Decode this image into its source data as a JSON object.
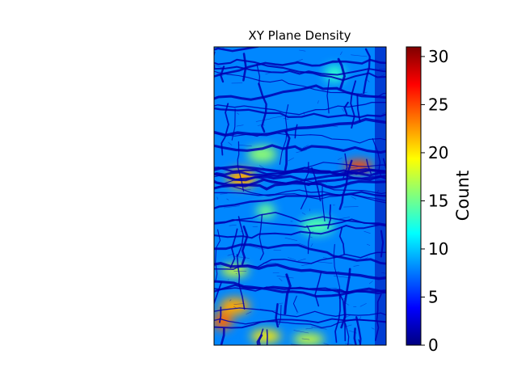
{
  "chart_data": {
    "type": "heatmap",
    "title": "XY Plane Density",
    "xlabel": "",
    "ylabel": "",
    "axes_visible": false,
    "colormap": "jet",
    "colormap_stops": [
      "#00007f",
      "#0000ff",
      "#007fff",
      "#00ffff",
      "#7fff7f",
      "#ffff00",
      "#ff7f00",
      "#ff0000",
      "#7f0000"
    ],
    "colorbar": {
      "label": "Count",
      "range": [
        0,
        31
      ],
      "ticks": [
        0,
        5,
        10,
        15,
        20,
        25,
        30
      ]
    },
    "background_level": 8,
    "crack_level": 1.5,
    "hotspots": [
      {
        "x": 0.84,
        "y": 0.4,
        "value": 25
      },
      {
        "x": 0.16,
        "y": 0.44,
        "value": 22
      },
      {
        "x": 0.28,
        "y": 0.36,
        "value": 16
      },
      {
        "x": 0.05,
        "y": 0.92,
        "value": 24
      },
      {
        "x": 0.12,
        "y": 0.87,
        "value": 22
      },
      {
        "x": 0.3,
        "y": 0.97,
        "value": 20
      },
      {
        "x": 0.55,
        "y": 0.98,
        "value": 18
      },
      {
        "x": 0.12,
        "y": 0.75,
        "value": 18
      },
      {
        "x": 0.7,
        "y": 0.09,
        "value": 13
      },
      {
        "x": 0.6,
        "y": 0.6,
        "value": 14
      },
      {
        "x": 0.3,
        "y": 0.55,
        "value": 15
      }
    ]
  }
}
